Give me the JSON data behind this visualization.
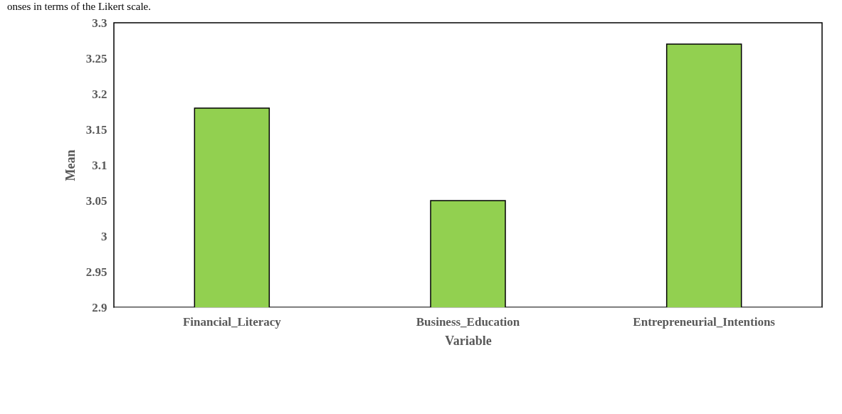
{
  "chart_data": {
    "type": "bar",
    "xlabel": "Variable",
    "ylabel": "Mean",
    "categories": [
      "Financial_Literacy",
      "Business_Education",
      "Entrepreneurial_Intentions"
    ],
    "values": [
      3.18,
      3.05,
      3.27
    ],
    "color": "#92d050",
    "ylim": [
      2.9,
      3.3
    ],
    "yticks": [
      2.9,
      2.95,
      3,
      3.05,
      3.1,
      3.15,
      3.2,
      3.25,
      3.3
    ],
    "grid": false,
    "annotations": [
      "onses in terms of the Likert scale."
    ]
  }
}
